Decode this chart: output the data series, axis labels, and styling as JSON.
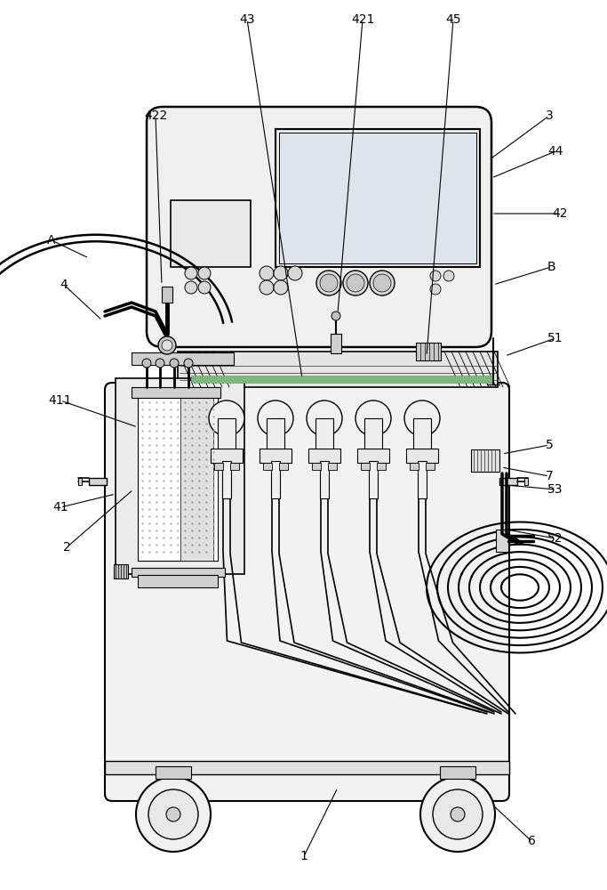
{
  "bg": "#ffffff",
  "lc": "#000000",
  "figsize": [
    6.83,
    10.0
  ],
  "dpi": 100,
  "label_fs": 10
}
